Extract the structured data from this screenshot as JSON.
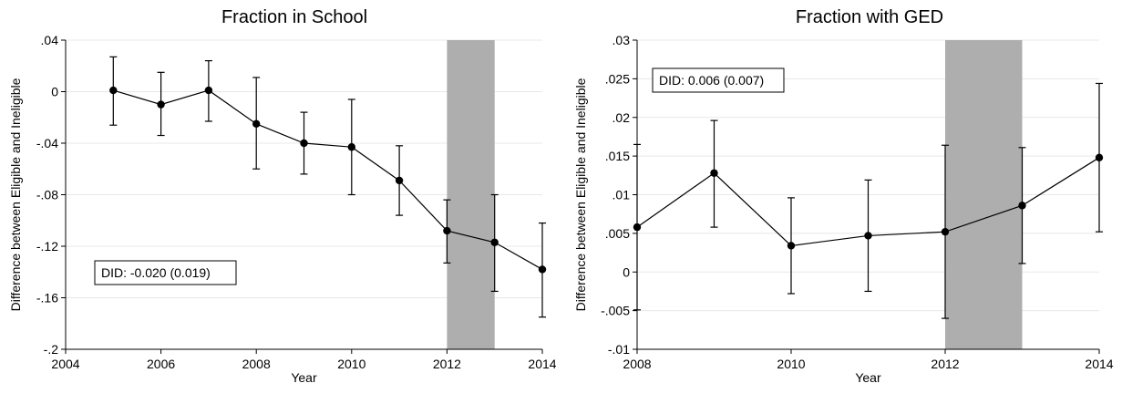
{
  "chart_data": [
    {
      "type": "line",
      "title": "Fraction in School",
      "xlabel": "Year",
      "ylabel": "Difference between Eligible and Ineligible",
      "xlim": [
        2004,
        2014
      ],
      "ylim": [
        -0.2,
        0.04
      ],
      "xticks": [
        2004,
        2006,
        2008,
        2010,
        2012,
        2014
      ],
      "xtick_labels": [
        "2004",
        "2006",
        "2008",
        "2010",
        "2012",
        "2014"
      ],
      "yticks": [
        -0.2,
        -0.16,
        -0.12,
        -0.08,
        -0.04,
        0,
        0.04
      ],
      "ytick_labels": [
        "-.2",
        "-.16",
        "-.12",
        "-.08",
        "-.04",
        "0",
        ".04"
      ],
      "grid": true,
      "shaded_region": [
        2012,
        2013
      ],
      "annotation": "DID: -0.020 (0.019)",
      "annotation_position": "bottom-left",
      "x": [
        2005,
        2006,
        2007,
        2008,
        2009,
        2010,
        2011,
        2012,
        2013,
        2014
      ],
      "y": [
        0.001,
        -0.01,
        0.001,
        -0.025,
        -0.04,
        -0.043,
        -0.069,
        -0.108,
        -0.117,
        -0.138
      ],
      "ci_low": [
        -0.026,
        -0.034,
        -0.023,
        -0.06,
        -0.064,
        -0.08,
        -0.096,
        -0.133,
        -0.155,
        -0.175
      ],
      "ci_high": [
        0.027,
        0.015,
        0.024,
        0.011,
        -0.016,
        -0.006,
        -0.042,
        -0.084,
        -0.08,
        -0.102
      ]
    },
    {
      "type": "line",
      "title": "Fraction with GED",
      "xlabel": "Year",
      "ylabel": "Difference between Eligible and Ineligible",
      "xlim": [
        2008,
        2014
      ],
      "ylim": [
        -0.01,
        0.03
      ],
      "xticks": [
        2008,
        2010,
        2012,
        2014
      ],
      "xtick_labels": [
        "2008",
        "2010",
        "2012",
        "2014"
      ],
      "yticks": [
        -0.01,
        -0.005,
        0,
        0.005,
        0.01,
        0.015,
        0.02,
        0.025,
        0.03
      ],
      "ytick_labels": [
        "-.01",
        "-.005",
        "0",
        ".005",
        ".01",
        ".015",
        ".02",
        ".025",
        ".03"
      ],
      "grid": true,
      "shaded_region": [
        2012,
        2013
      ],
      "annotation": "DID: 0.006 (0.007)",
      "annotation_position": "top-left",
      "x": [
        2008,
        2009,
        2010,
        2011,
        2012,
        2013,
        2014
      ],
      "y": [
        0.0058,
        0.0128,
        0.0034,
        0.0047,
        0.0052,
        0.0086,
        0.0148
      ],
      "ci_low": [
        -0.0049,
        0.0058,
        -0.0028,
        -0.0025,
        -0.006,
        0.0011,
        0.0052
      ],
      "ci_high": [
        0.0165,
        0.0196,
        0.0096,
        0.0119,
        0.0164,
        0.0161,
        0.0244
      ]
    }
  ]
}
